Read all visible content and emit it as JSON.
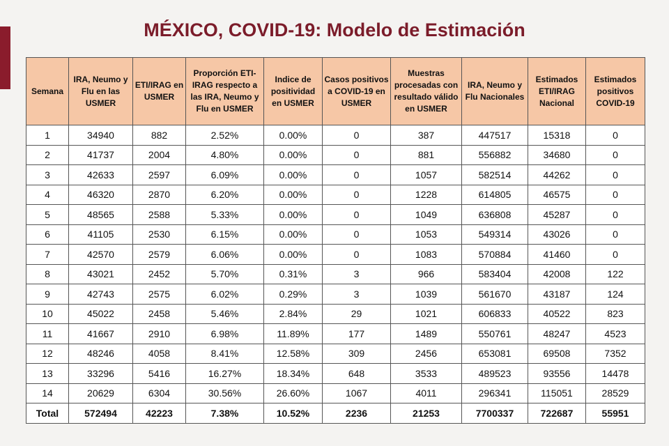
{
  "header": {
    "title": "MÉXICO, COVID-19: Modelo de Estimación"
  },
  "table": {
    "columns": [
      "Semana",
      "IRA, Neumo y Flu en las USMER",
      "ETI/IRAG en USMER",
      "Proporción ETI-IRAG respecto a las IRA, Neumo y Flu en USMER",
      "Indice de positividad en USMER",
      "Casos positivos a COVID-19 en USMER",
      "Muestras procesadas con resultado válido en USMER",
      "IRA, Neumo y Flu Nacionales",
      "Estimados ETI/IRAG Nacional",
      "Estimados positivos COVID-19"
    ],
    "rows": [
      [
        "1",
        "34940",
        "882",
        "2.52%",
        "0.00%",
        "0",
        "387",
        "447517",
        "15318",
        "0"
      ],
      [
        "2",
        "41737",
        "2004",
        "4.80%",
        "0.00%",
        "0",
        "881",
        "556882",
        "34680",
        "0"
      ],
      [
        "3",
        "42633",
        "2597",
        "6.09%",
        "0.00%",
        "0",
        "1057",
        "582514",
        "44262",
        "0"
      ],
      [
        "4",
        "46320",
        "2870",
        "6.20%",
        "0.00%",
        "0",
        "1228",
        "614805",
        "46575",
        "0"
      ],
      [
        "5",
        "48565",
        "2588",
        "5.33%",
        "0.00%",
        "0",
        "1049",
        "636808",
        "45287",
        "0"
      ],
      [
        "6",
        "41105",
        "2530",
        "6.15%",
        "0.00%",
        "0",
        "1053",
        "549314",
        "43026",
        "0"
      ],
      [
        "7",
        "42570",
        "2579",
        "6.06%",
        "0.00%",
        "0",
        "1083",
        "570884",
        "41460",
        "0"
      ],
      [
        "8",
        "43021",
        "2452",
        "5.70%",
        "0.31%",
        "3",
        "966",
        "583404",
        "42008",
        "122"
      ],
      [
        "9",
        "42743",
        "2575",
        "6.02%",
        "0.29%",
        "3",
        "1039",
        "561670",
        "43187",
        "124"
      ],
      [
        "10",
        "45022",
        "2458",
        "5.46%",
        "2.84%",
        "29",
        "1021",
        "606833",
        "40522",
        "823"
      ],
      [
        "11",
        "41667",
        "2910",
        "6.98%",
        "11.89%",
        "177",
        "1489",
        "550761",
        "48247",
        "4523"
      ],
      [
        "12",
        "48246",
        "4058",
        "8.41%",
        "12.58%",
        "309",
        "2456",
        "653081",
        "69508",
        "7352"
      ],
      [
        "13",
        "33296",
        "5416",
        "16.27%",
        "18.34%",
        "648",
        "3533",
        "489523",
        "93556",
        "14478"
      ],
      [
        "14",
        "20629",
        "6304",
        "30.56%",
        "26.60%",
        "1067",
        "4011",
        "296341",
        "115051",
        "28529"
      ]
    ],
    "total": [
      "Total",
      "572494",
      "42223",
      "7.38%",
      "10.52%",
      "2236",
      "21253",
      "7700337",
      "722687",
      "55951"
    ]
  }
}
